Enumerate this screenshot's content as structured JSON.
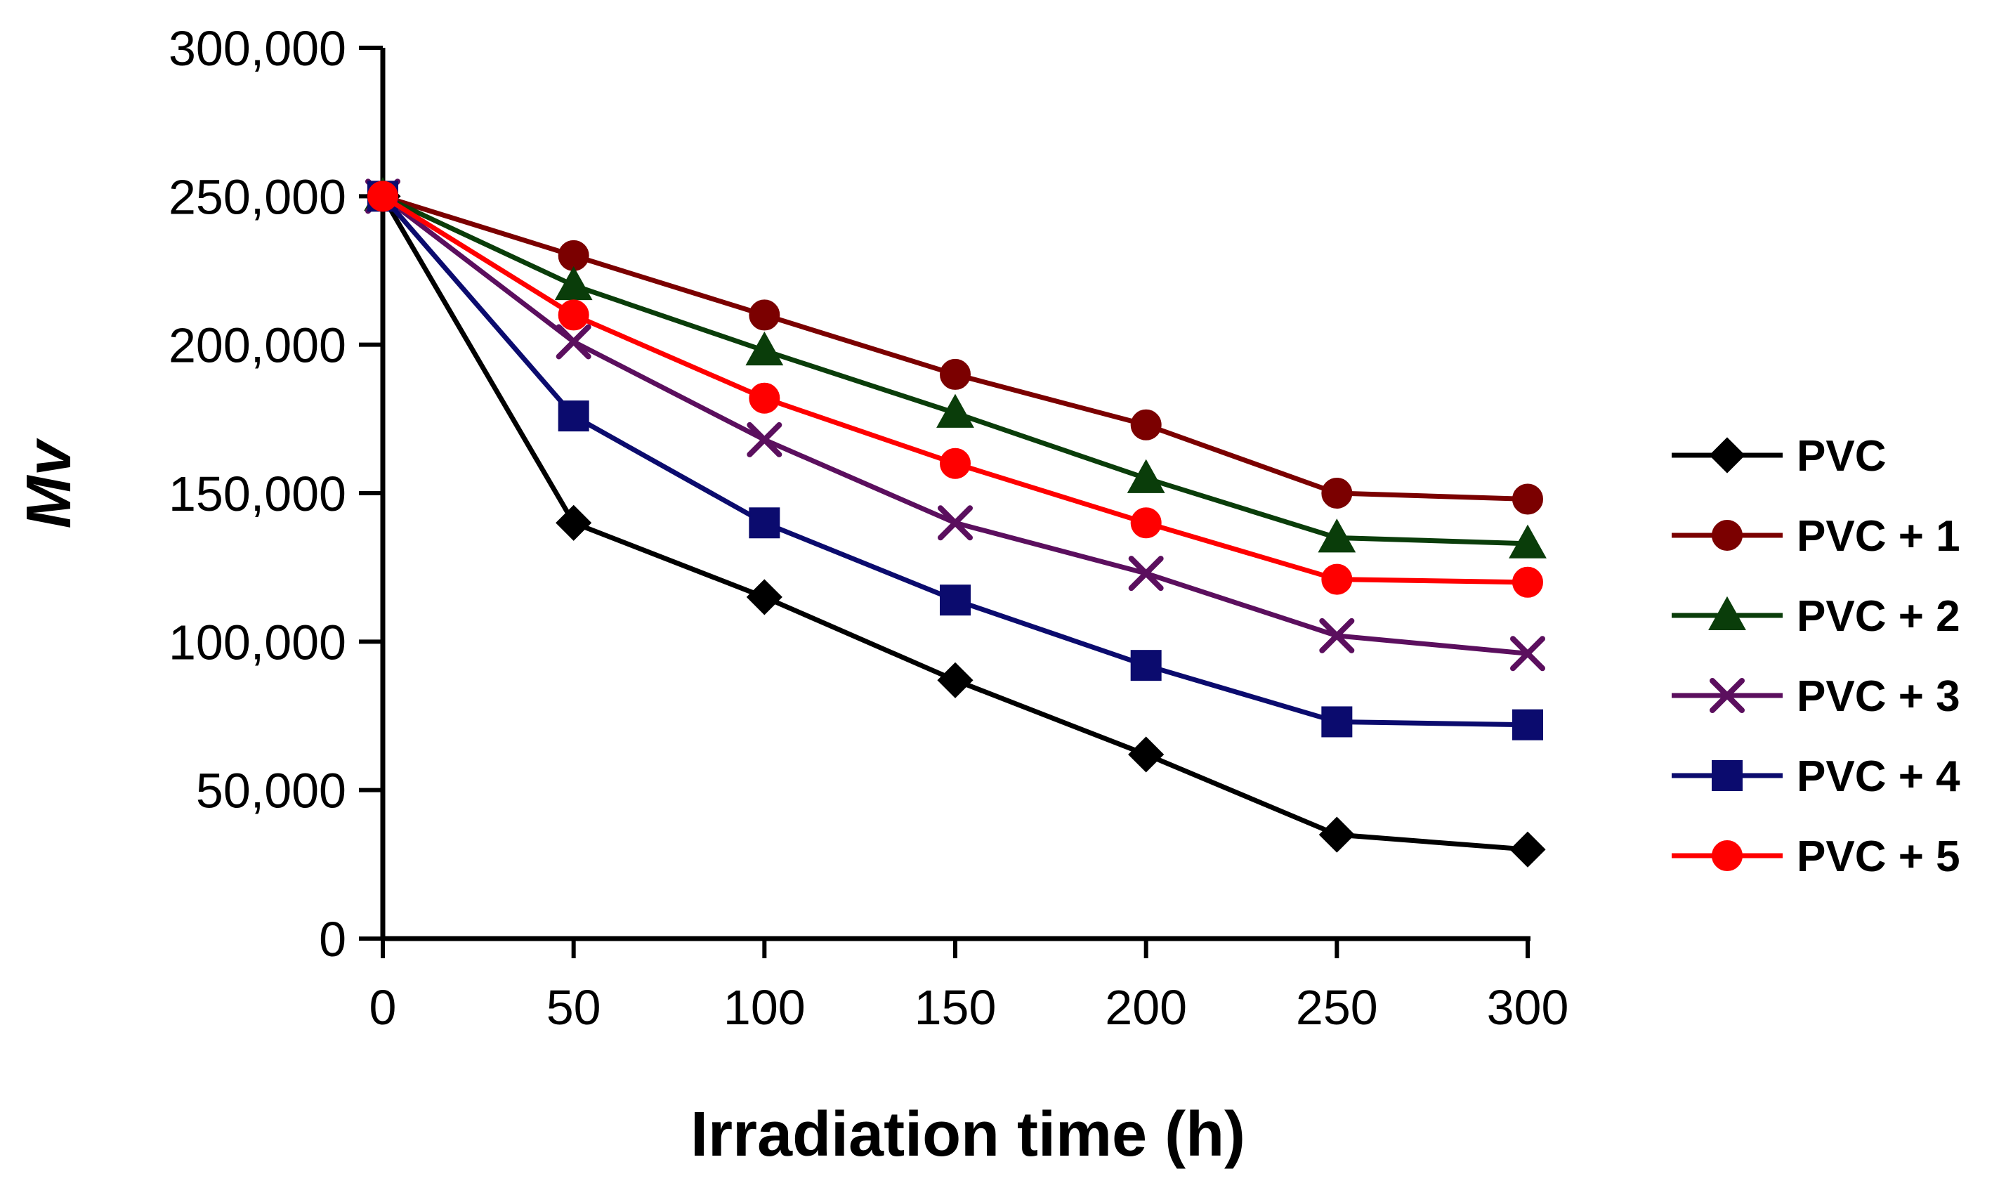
{
  "chart_data": {
    "type": "line",
    "title": "",
    "xlabel": "Irradiation time (h)",
    "ylabel": "Mv",
    "x": [
      0,
      50,
      100,
      150,
      200,
      250,
      300
    ],
    "xlim": [
      0,
      300
    ],
    "ylim": [
      0,
      300000
    ],
    "x_ticks": [
      0,
      50,
      100,
      150,
      200,
      250,
      300
    ],
    "x_tick_labels": [
      "0",
      "50",
      "100",
      "150",
      "200",
      "250",
      "300"
    ],
    "y_ticks": [
      0,
      50000,
      100000,
      150000,
      200000,
      250000,
      300000
    ],
    "y_tick_labels": [
      "0",
      "50,000",
      "100,000",
      "150,000",
      "200,000",
      "250,000",
      "300,000"
    ],
    "grid": false,
    "legend_position": "right",
    "series": [
      {
        "name": "PVC",
        "color": "#000000",
        "marker": "diamond",
        "values": [
          250000,
          140000,
          115000,
          87000,
          62000,
          35000,
          30000
        ]
      },
      {
        "name": "PVC + 1",
        "color": "#7b0000",
        "marker": "circle",
        "values": [
          250000,
          230000,
          210000,
          190000,
          173000,
          150000,
          148000
        ]
      },
      {
        "name": "PVC + 2",
        "color": "#0a3d0a",
        "marker": "triangle",
        "values": [
          250000,
          220000,
          198000,
          177000,
          155000,
          135000,
          133000
        ]
      },
      {
        "name": "PVC + 3",
        "color": "#5b0f5e",
        "marker": "x",
        "values": [
          250000,
          201000,
          168000,
          140000,
          123000,
          102000,
          96000
        ]
      },
      {
        "name": "PVC + 4",
        "color": "#0b0b6e",
        "marker": "square",
        "values": [
          250000,
          176000,
          140000,
          114000,
          92000,
          73000,
          72000
        ]
      },
      {
        "name": "PVC + 5",
        "color": "#ff0000",
        "marker": "circle",
        "values": [
          250000,
          210000,
          182000,
          160000,
          140000,
          121000,
          120000
        ]
      }
    ]
  }
}
